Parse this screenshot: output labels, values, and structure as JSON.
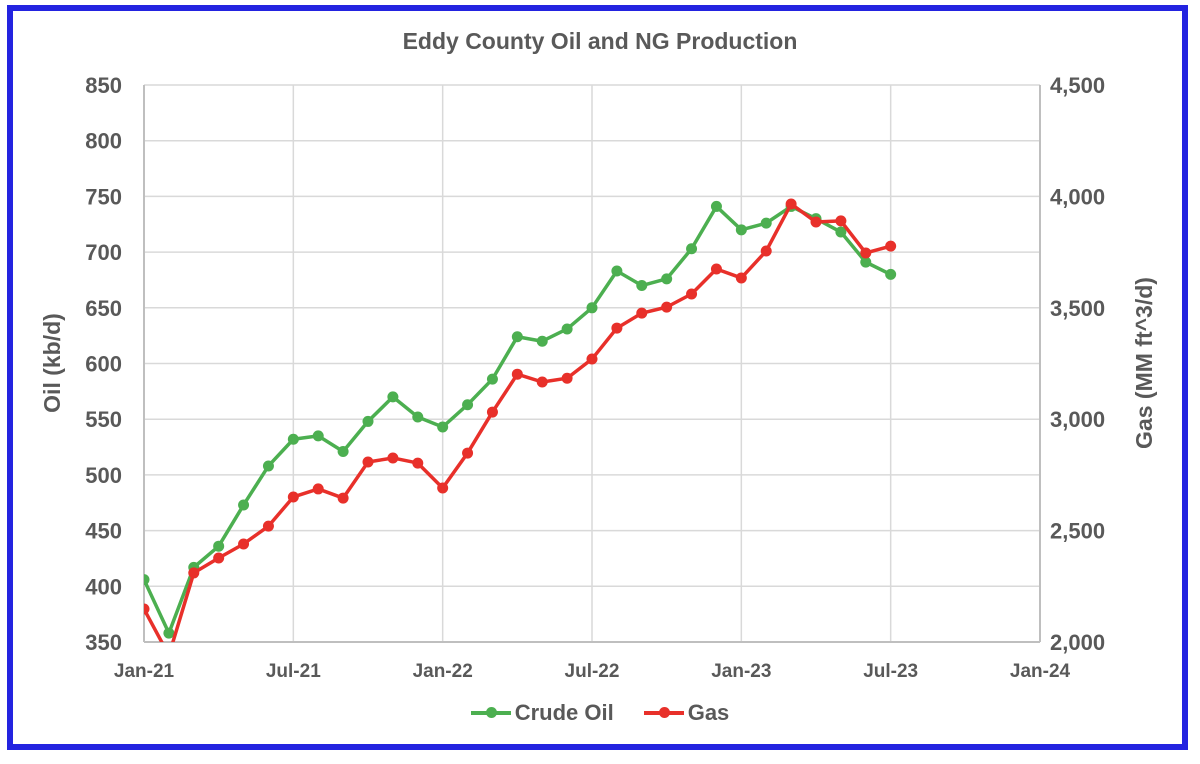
{
  "chart_data": {
    "type": "line",
    "title": "Eddy County Oil and NG Production",
    "xlabel": "",
    "ylabel": "Oil (kb/d)",
    "y2label": "Gas (MM ft^3/d)",
    "ylim": [
      350,
      850
    ],
    "y2lim": [
      2000,
      4500
    ],
    "yticks": [
      "350",
      "400",
      "450",
      "500",
      "550",
      "600",
      "650",
      "700",
      "750",
      "800",
      "850"
    ],
    "y2ticks": [
      "2,000",
      "2,500",
      "3,000",
      "3,500",
      "4,000",
      "4,500"
    ],
    "xticks": [
      "Jan-21",
      "Jul-21",
      "Jan-22",
      "Jul-22",
      "Jan-23",
      "Jul-23",
      "Jan-24"
    ],
    "grid": true,
    "legend_position": "bottom",
    "x": [
      "Jan-21",
      "Feb-21",
      "Mar-21",
      "Apr-21",
      "May-21",
      "Jun-21",
      "Jul-21",
      "Aug-21",
      "Sep-21",
      "Oct-21",
      "Nov-21",
      "Dec-21",
      "Jan-22",
      "Feb-22",
      "Mar-22",
      "Apr-22",
      "May-22",
      "Jun-22",
      "Jul-22",
      "Aug-22",
      "Sep-22",
      "Oct-22",
      "Nov-22",
      "Dec-22",
      "Jan-23",
      "Feb-23",
      "Mar-23",
      "Apr-23",
      "May-23",
      "Jun-23",
      "Jul-23"
    ],
    "series": [
      {
        "name": "Crude Oil",
        "axis": "left",
        "color": "#4caf50",
        "values": [
          406,
          358,
          417,
          436,
          473,
          508,
          532,
          535,
          521,
          548,
          570,
          552,
          543,
          563,
          586,
          624,
          620,
          631,
          650,
          683,
          670,
          676,
          703,
          741,
          720,
          726,
          741,
          730,
          718,
          691,
          680
        ]
      },
      {
        "name": "Gas",
        "axis": "right",
        "color": "#e8302a",
        "values": [
          2148,
          1940,
          2310,
          2377,
          2440,
          2520,
          2651,
          2687,
          2646,
          2808,
          2826,
          2803,
          2691,
          2848,
          3032,
          3202,
          3167,
          3184,
          3270,
          3409,
          3476,
          3503,
          3562,
          3674,
          3634,
          3755,
          3966,
          3885,
          3890,
          3746,
          3777
        ]
      }
    ]
  },
  "legend": {
    "items": [
      {
        "label": "Crude Oil",
        "color": "#4caf50"
      },
      {
        "label": "Gas",
        "color": "#e8302a"
      }
    ]
  },
  "colors": {
    "frame": "#2323e0",
    "grid": "#d9d9d9",
    "text": "#595959"
  }
}
